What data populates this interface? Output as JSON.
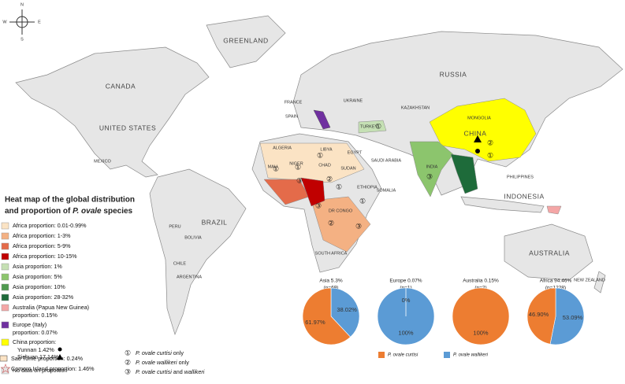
{
  "compass": {
    "n": "N",
    "s": "S",
    "e": "E",
    "w": "W"
  },
  "countries": [
    "GREENLAND",
    "CANADA",
    "UNITED STATES",
    "RUSSIA",
    "CHINA",
    "MONGOLIA",
    "KAZAKHSTAN",
    "BRAZIL",
    "AUSTRALIA",
    "INDONESIA",
    "INDIA",
    "TURKEY",
    "NEW ZEALAND",
    "MEXICO",
    "PERU",
    "BOLIVIA",
    "CHILE",
    "ARGENTINA",
    "ALGERIA",
    "LIBYA",
    "EGYPT",
    "MALI",
    "NIGER",
    "CHAD",
    "SUDAN",
    "ETHIOPIA",
    "SOMALIA",
    "SOUTH AFRICA",
    "SAUDI ARABIA",
    "PHILIPPINES",
    "UKRAINE",
    "FRANCE",
    "SPAIN",
    "DR CONGO"
  ],
  "map_markers": [
    "①",
    "③",
    "②",
    "①",
    "①",
    "①",
    "①",
    "③",
    "②",
    "①",
    "③",
    "②",
    "③",
    "①"
  ],
  "title": [
    "Heat map of the global distribution",
    "and proportion of",
    "P. ovale",
    "species"
  ],
  "legend": [
    {
      "label": "Africa proportion: 0.01-0.99%",
      "color": "#fbe3c4"
    },
    {
      "label": "Africa proportion: 1-3%",
      "color": "#f4b183"
    },
    {
      "label": "Africa proportion: 5-9%",
      "color": "#e46b4a"
    },
    {
      "label": "Africa proportion: 10-15%",
      "color": "#c00000"
    },
    {
      "label": "Asia proportion: 1%",
      "color": "#c5e0b4"
    },
    {
      "label": "Asia proportion: 5%",
      "color": "#8cc56d"
    },
    {
      "label": "Asia proportion: 10%",
      "color": "#4f9a4f"
    },
    {
      "label": "Asia proportion: 28-32%",
      "color": "#1e6b3a"
    },
    {
      "label": "Australia (Papua New Guinea) proportion: 0.15%",
      "color": "#f4a6a6"
    },
    {
      "label": "Europe (Italy) proportion: 0.07%",
      "color": "#7030a0"
    },
    {
      "label": "China proportion:",
      "color": "#ffff00"
    },
    {
      "label": "No data on proportion",
      "color": "#e6e6e6"
    }
  ],
  "china_sub": [
    "Yunnan 1.42%",
    "Sichuan 17.14%"
  ],
  "islands": [
    "Sao Tome proportion: 0.24%",
    "Comoro Island proportion: 1.46%"
  ],
  "symbols": [
    {
      "mark": "①",
      "parts": [
        "P. ovale curtisi",
        "only"
      ]
    },
    {
      "mark": "②",
      "parts": [
        "P. ovale wallikeri",
        "only"
      ]
    },
    {
      "mark": "③",
      "parts": [
        "P. ovale curtisi",
        "and",
        "wallikeri"
      ]
    }
  ],
  "pie_legend": [
    {
      "name": "P. ovale curtisi",
      "color": "#ed7d31"
    },
    {
      "name": "P. ovale wallikeri",
      "color": "#5b9bd5"
    }
  ],
  "chart_data": [
    {
      "type": "pie",
      "title": "Asia 5.3%",
      "subtitle": "(n=69)",
      "values": [
        61.97,
        38.02
      ],
      "value_labels": [
        "61.97%",
        "38.02%"
      ]
    },
    {
      "type": "pie",
      "title": "Europe 0.07%",
      "subtitle": "(n=1)",
      "values": [
        0,
        100
      ],
      "value_labels": [
        "0%",
        "100%"
      ]
    },
    {
      "type": "pie",
      "title": "Australia 0.15%",
      "subtitle": "(n=2)",
      "values": [
        100,
        0
      ],
      "value_labels": [
        "100%",
        "0%"
      ]
    },
    {
      "type": "pie",
      "title": "Africa 94.46%",
      "subtitle": "(n=1228)",
      "values": [
        46.9,
        53.09
      ],
      "value_labels": [
        "46.90%",
        "53.09%"
      ]
    }
  ]
}
